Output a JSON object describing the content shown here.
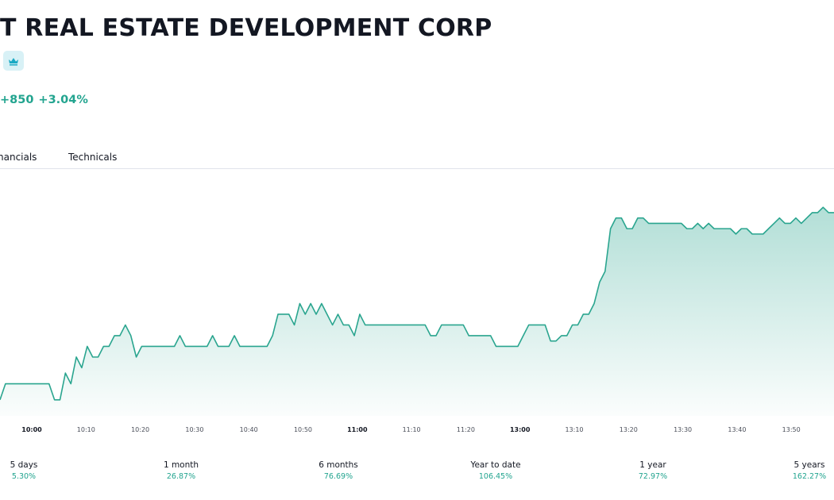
{
  "header": {
    "title": "T REAL ESTATE DEVELOPMENT CORP",
    "badge_icon": "crown-icon",
    "change_abs": "+850",
    "change_pct": "+3.04%"
  },
  "tabs": [
    {
      "label": "nancials"
    },
    {
      "label": "Technicals"
    }
  ],
  "colors": {
    "accent": "#22a48f",
    "line": "#2aa58f",
    "badge_bg": "#d8f1f6",
    "badge_icon": "#1aa9c4"
  },
  "chart_data": {
    "type": "area",
    "x_ticks": [
      {
        "label": "10:00",
        "bold": true
      },
      {
        "label": "10:10",
        "bold": false
      },
      {
        "label": "10:20",
        "bold": false
      },
      {
        "label": "10:30",
        "bold": false
      },
      {
        "label": "10:40",
        "bold": false
      },
      {
        "label": "10:50",
        "bold": false
      },
      {
        "label": "11:00",
        "bold": true
      },
      {
        "label": "11:10",
        "bold": false
      },
      {
        "label": "11:20",
        "bold": false
      },
      {
        "label": "13:00",
        "bold": true
      },
      {
        "label": "13:10",
        "bold": false
      },
      {
        "label": "13:20",
        "bold": false
      },
      {
        "label": "13:30",
        "bold": false
      },
      {
        "label": "13:40",
        "bold": false
      },
      {
        "label": "13:50",
        "bold": false
      }
    ],
    "values": [
      27.95,
      28.1,
      28.1,
      28.1,
      28.1,
      28.1,
      28.1,
      28.1,
      28.1,
      28.1,
      27.95,
      27.95,
      28.2,
      28.1,
      28.35,
      28.25,
      28.45,
      28.35,
      28.35,
      28.45,
      28.45,
      28.55,
      28.55,
      28.65,
      28.55,
      28.35,
      28.45,
      28.45,
      28.45,
      28.45,
      28.45,
      28.45,
      28.45,
      28.55,
      28.45,
      28.45,
      28.45,
      28.45,
      28.45,
      28.55,
      28.45,
      28.45,
      28.45,
      28.55,
      28.45,
      28.45,
      28.45,
      28.45,
      28.45,
      28.45,
      28.55,
      28.75,
      28.75,
      28.75,
      28.65,
      28.85,
      28.75,
      28.85,
      28.75,
      28.85,
      28.75,
      28.65,
      28.75,
      28.65,
      28.65,
      28.55,
      28.75,
      28.65,
      28.65,
      28.65,
      28.65,
      28.65,
      28.65,
      28.65,
      28.65,
      28.65,
      28.65,
      28.65,
      28.65,
      28.55,
      28.55,
      28.65,
      28.65,
      28.65,
      28.65,
      28.65,
      28.55,
      28.55,
      28.55,
      28.55,
      28.55,
      28.45,
      28.45,
      28.45,
      28.45,
      28.45,
      28.55,
      28.65,
      28.65,
      28.65,
      28.65,
      28.5,
      28.5,
      28.55,
      28.55,
      28.65,
      28.65,
      28.75,
      28.75,
      28.85,
      29.05,
      29.15,
      29.55,
      29.65,
      29.65,
      29.55,
      29.55,
      29.65,
      29.65,
      29.6,
      29.6,
      29.6,
      29.6,
      29.6,
      29.6,
      29.6,
      29.55,
      29.55,
      29.6,
      29.55,
      29.6,
      29.55,
      29.55,
      29.55,
      29.55,
      29.5,
      29.55,
      29.55,
      29.5,
      29.5,
      29.5,
      29.55,
      29.6,
      29.65,
      29.6,
      29.6,
      29.65,
      29.6,
      29.65,
      29.7,
      29.7,
      29.75,
      29.7,
      29.7
    ],
    "ylim": [
      27.8,
      30.1
    ],
    "grid": false,
    "legend": "none"
  },
  "performance": [
    {
      "label": "5 days",
      "value": "5.30%"
    },
    {
      "label": "1 month",
      "value": "26.87%"
    },
    {
      "label": "6 months",
      "value": "76.69%"
    },
    {
      "label": "Year to date",
      "value": "106.45%"
    },
    {
      "label": "1 year",
      "value": "72.97%"
    },
    {
      "label": "5 years",
      "value": "162.27%"
    }
  ]
}
